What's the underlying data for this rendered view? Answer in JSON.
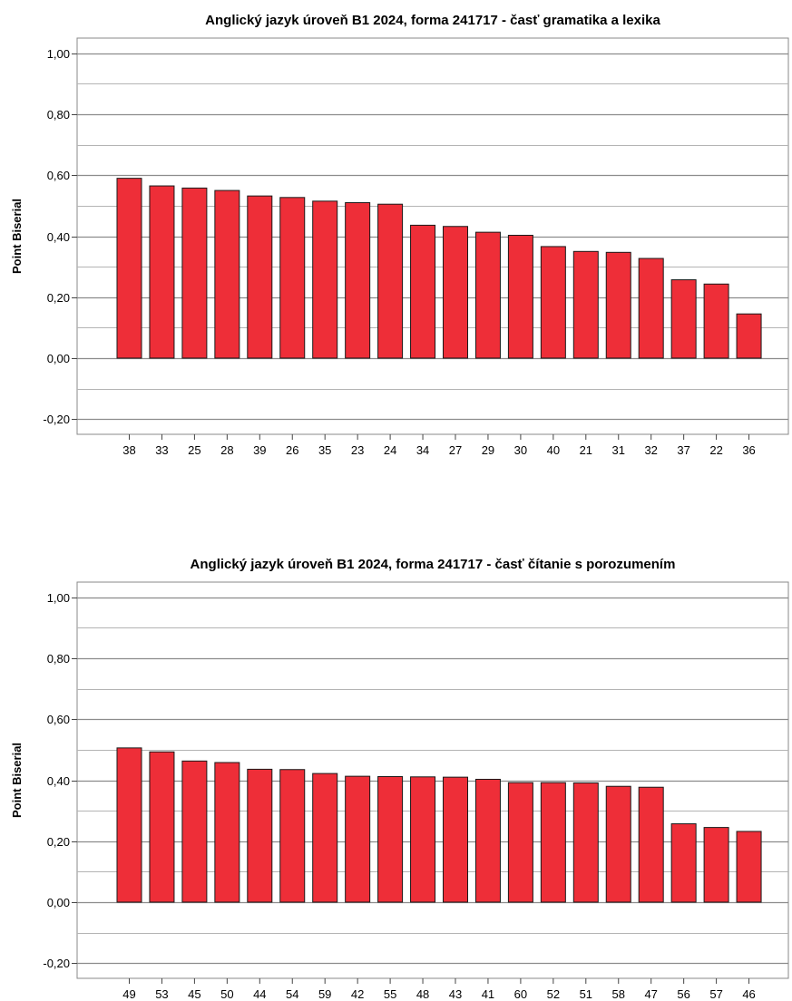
{
  "chart_data": [
    {
      "type": "bar",
      "title": "Anglický jazyk úroveň B1 2024, forma 241717 - časť gramatika a lexika",
      "xlabel": "",
      "ylabel": "Point Biserial",
      "ylim": [
        -0.25,
        1.05
      ],
      "yticks": [
        "1,00",
        "0,80",
        "0,60",
        "0,40",
        "0,20",
        "0,00",
        "-0,20"
      ],
      "categories": [
        "38",
        "33",
        "25",
        "28",
        "39",
        "26",
        "35",
        "23",
        "24",
        "34",
        "27",
        "29",
        "30",
        "40",
        "21",
        "31",
        "32",
        "37",
        "22",
        "36"
      ],
      "values": [
        0.59,
        0.565,
        0.558,
        0.55,
        0.532,
        0.527,
        0.515,
        0.51,
        0.505,
        0.436,
        0.432,
        0.413,
        0.403,
        0.366,
        0.35,
        0.347,
        0.327,
        0.257,
        0.243,
        0.145
      ],
      "bar_color": "#ee2e38",
      "grid": true
    },
    {
      "type": "bar",
      "title": "Anglický jazyk úroveň B1 2024, forma 241717 - časť čítanie s porozumením",
      "xlabel": "",
      "ylabel": "Point Biserial",
      "ylim": [
        -0.25,
        1.05
      ],
      "yticks": [
        "1,00",
        "0,80",
        "0,60",
        "0,40",
        "0,20",
        "0,00",
        "-0,20"
      ],
      "categories": [
        "49",
        "53",
        "45",
        "50",
        "44",
        "54",
        "59",
        "42",
        "55",
        "48",
        "43",
        "41",
        "60",
        "52",
        "51",
        "58",
        "47",
        "56",
        "57",
        "46"
      ],
      "values": [
        0.506,
        0.493,
        0.463,
        0.458,
        0.436,
        0.435,
        0.422,
        0.413,
        0.412,
        0.411,
        0.41,
        0.403,
        0.392,
        0.392,
        0.391,
        0.38,
        0.377,
        0.257,
        0.245,
        0.232
      ],
      "bar_color": "#ee2e38",
      "grid": true
    }
  ]
}
